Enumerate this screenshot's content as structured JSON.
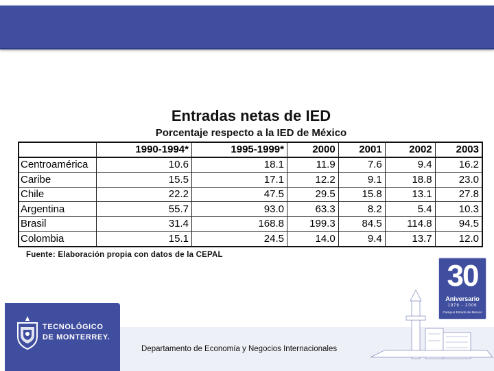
{
  "slide": {
    "title": "Entradas netas de IED",
    "subtitle": "Porcentaje respecto a la IED de México",
    "table": {
      "columns": [
        "1990-1994*",
        "1995-1999*",
        "2000",
        "2001",
        "2002",
        "2003"
      ],
      "rows": [
        {
          "label": "Centroamérica",
          "values": [
            "10.6",
            "18.1",
            "11.9",
            "7.6",
            "9.4",
            "16.2"
          ]
        },
        {
          "label": "Caribe",
          "values": [
            "15.5",
            "17.1",
            "12.2",
            "9.1",
            "18.8",
            "23.0"
          ]
        },
        {
          "label": "Chile",
          "values": [
            "22.2",
            "47.5",
            "29.5",
            "15.8",
            "13.1",
            "27.8"
          ]
        },
        {
          "label": "Argentina",
          "values": [
            "55.7",
            "93.0",
            "63.3",
            "8.2",
            "5.4",
            "10.3"
          ]
        },
        {
          "label": "Brasil",
          "values": [
            "31.4",
            "168.8",
            "199.3",
            "84.5",
            "114.8",
            "94.5"
          ]
        },
        {
          "label": "Colombia",
          "values": [
            "15.1",
            "24.5",
            "14.0",
            "9.4",
            "13.7",
            "12.0"
          ]
        }
      ]
    },
    "source": "Fuente: Elaboración propia con datos de la CEPAL"
  },
  "footer": {
    "department": "Departamento de Economía y Negocios Internacionales",
    "logo_line1": "TECNOLÓGICO",
    "logo_line2": "DE MONTERREY.",
    "badge": {
      "number": "30",
      "word": "Aniversario",
      "years": "1976 - 2006",
      "campus": "Campus Estado de México"
    }
  },
  "colors": {
    "brand_blue": "#3f4e9e",
    "footer_inner": "#eef0f7"
  },
  "icons": {
    "logo": "tec-de-monterrey-shield-icon",
    "skyline": "campus-tower-skyline-icon"
  }
}
